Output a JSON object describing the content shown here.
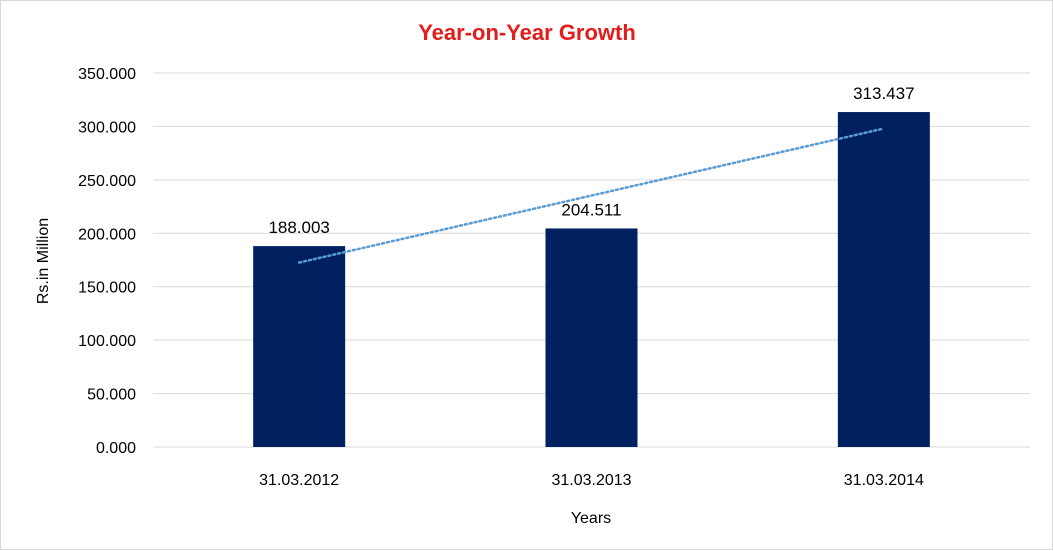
{
  "chart_data": {
    "type": "bar",
    "title": "Year-on-Year Growth",
    "xlabel": "Years",
    "ylabel": "Rs.in Million",
    "categories": [
      "31.03.2012",
      "31.03.2013",
      "31.03.2014"
    ],
    "values": [
      188.003,
      204.511,
      313.437
    ],
    "data_labels": [
      "188.003",
      "204.511",
      "313.437"
    ],
    "ylim": [
      0,
      350
    ],
    "yticks": [
      0,
      50,
      100,
      150,
      200,
      250,
      300,
      350
    ],
    "ytick_labels": [
      "0.000",
      "50.000",
      "100.000",
      "150.000",
      "200.000",
      "250.000",
      "300.000",
      "350.000"
    ],
    "grid": true,
    "trendline": {
      "type": "linear",
      "style": "dotted"
    },
    "colors": {
      "bar": "#002060",
      "title": "#e31c1c",
      "trendline": "#5b9bd5",
      "grid": "#d9d9d9"
    }
  }
}
